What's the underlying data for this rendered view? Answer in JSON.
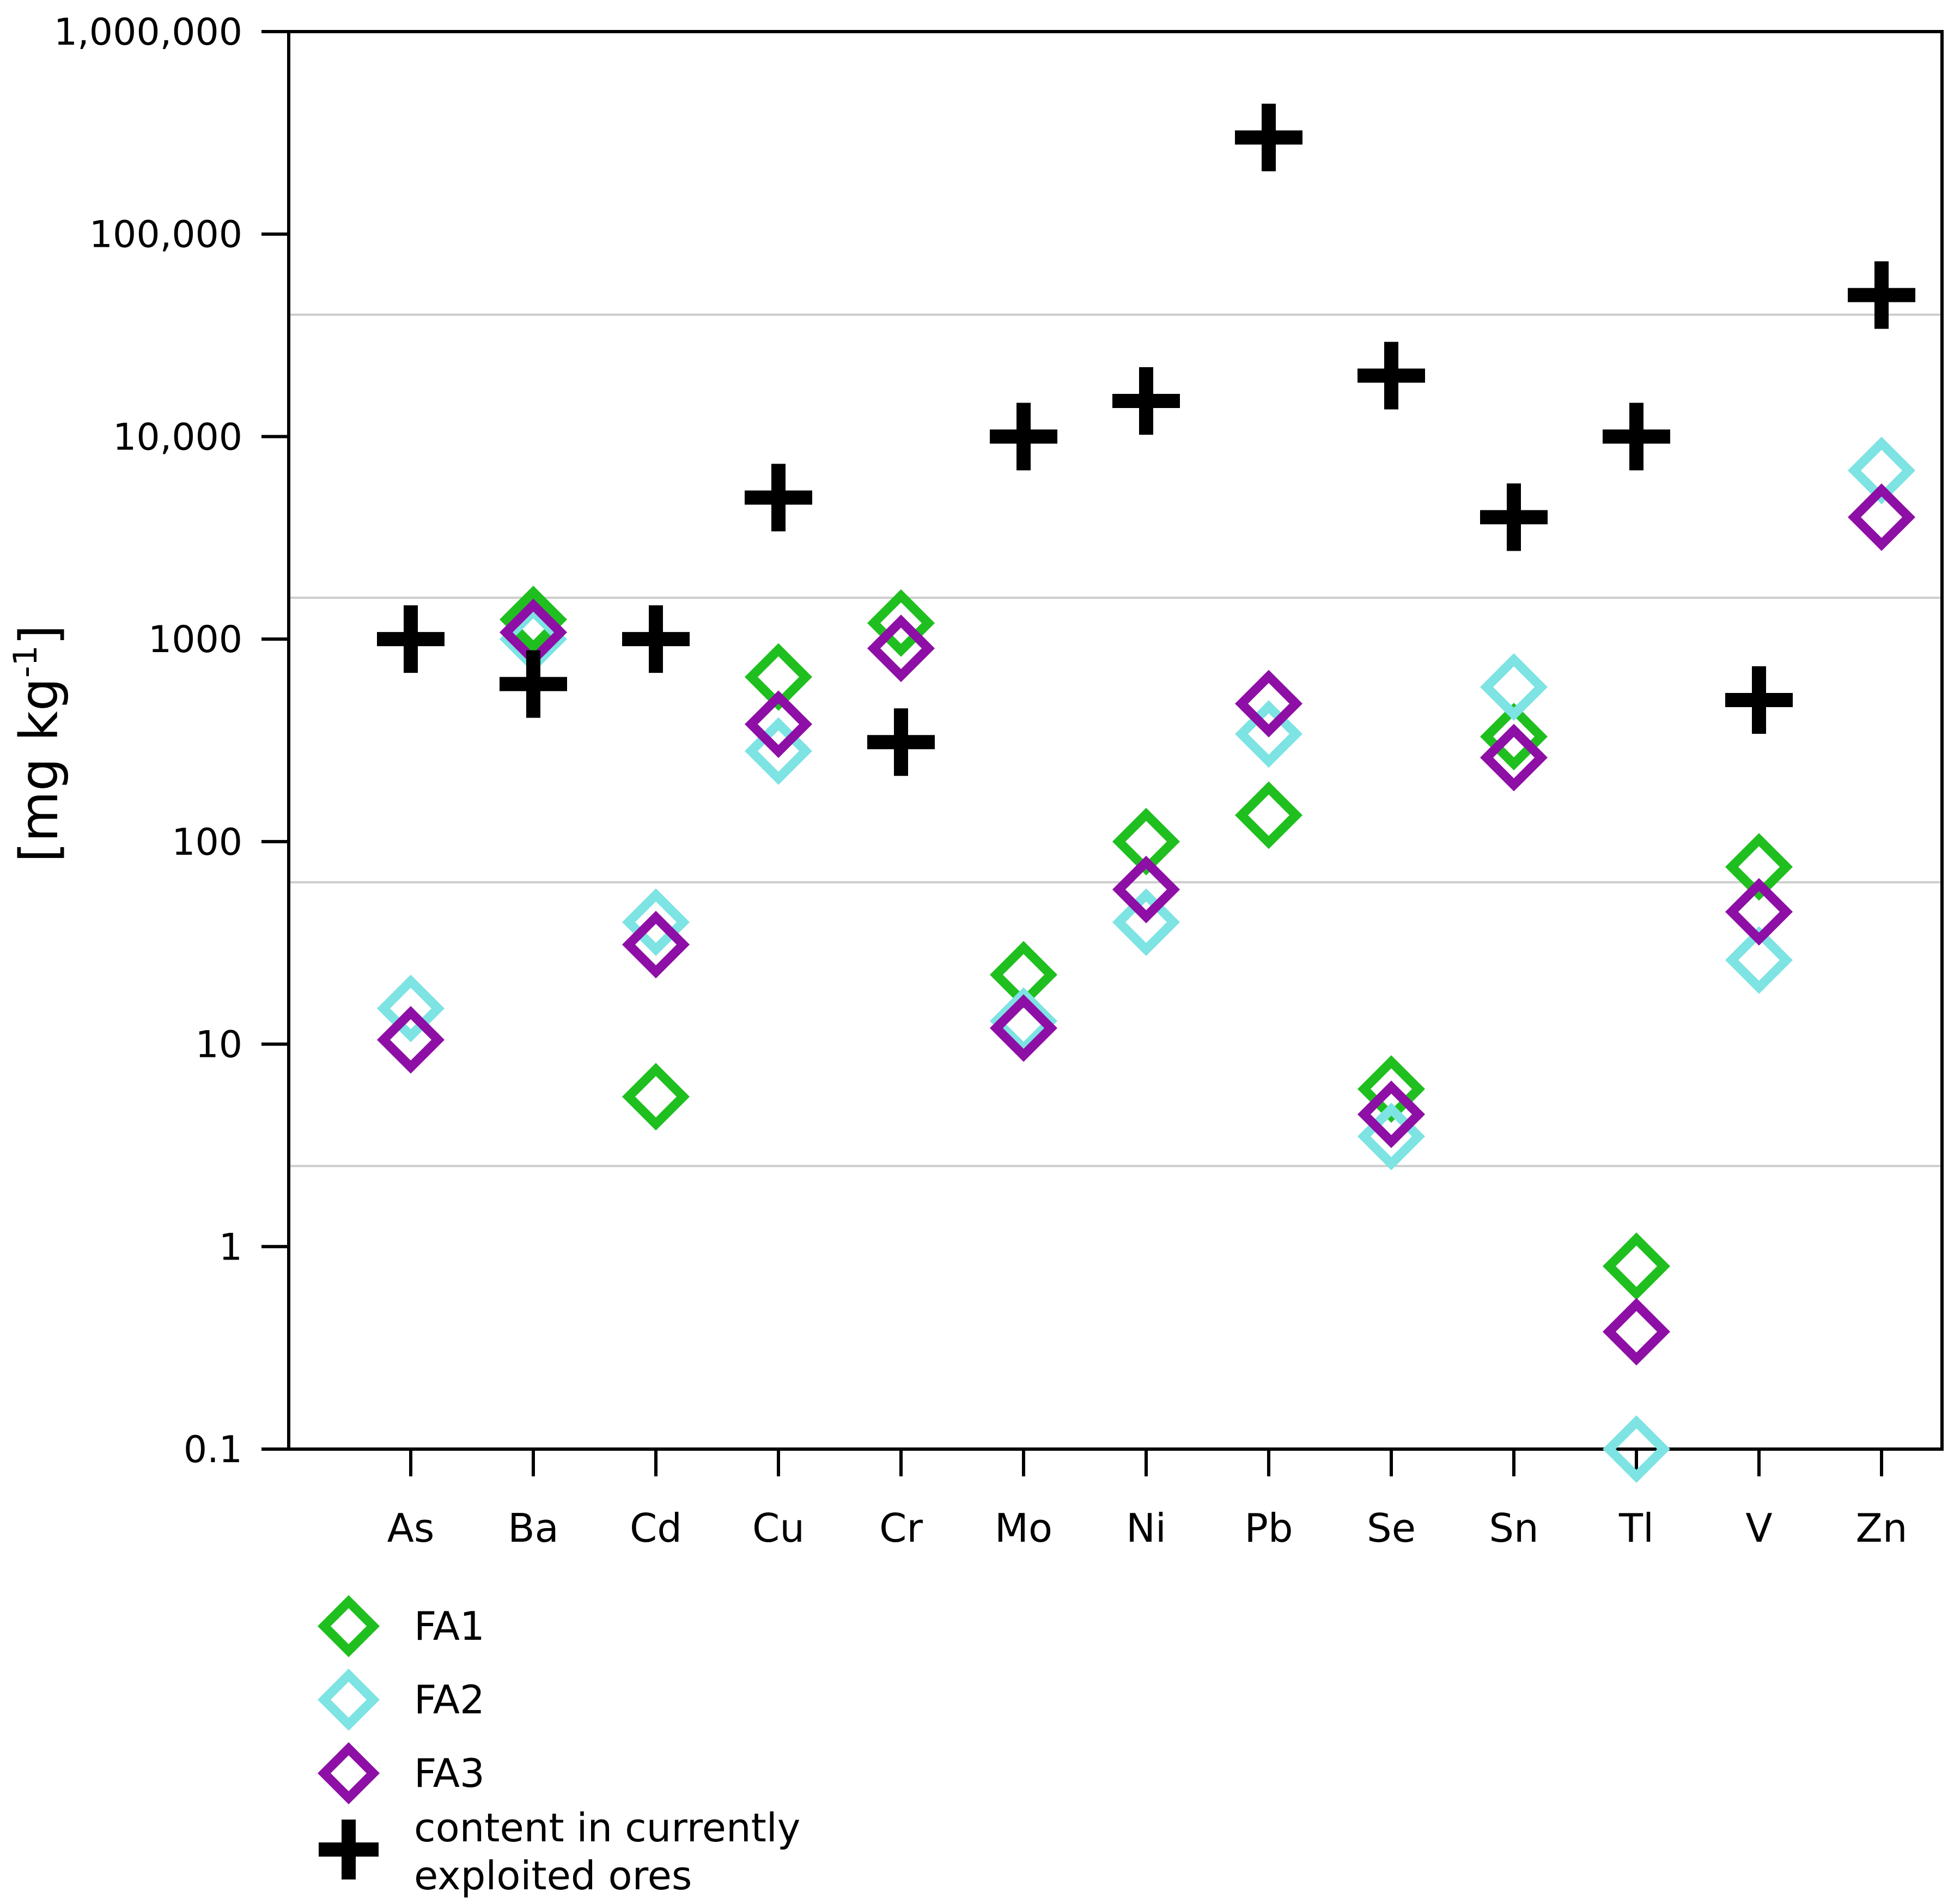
{
  "chart_data": {
    "type": "scatter",
    "y_scale": "log",
    "ylim": [
      0.1,
      1000000
    ],
    "ylabel": "[mg kg",
    "ylabel_sup": "-1",
    "ylabel_close": "]",
    "yticks": [
      {
        "value": 1000000,
        "label": "1,000,000"
      },
      {
        "value": 100000,
        "label": "100,000"
      },
      {
        "value": 10000,
        "label": "10,000"
      },
      {
        "value": 1000,
        "label": "1000"
      },
      {
        "value": 100,
        "label": "100"
      },
      {
        "value": 10,
        "label": "10"
      },
      {
        "value": 1,
        "label": "1"
      },
      {
        "value": 0.1,
        "label": "0.1"
      }
    ],
    "gridlines": [
      40000,
      1600,
      63,
      2.5
    ],
    "categories": [
      "As",
      "Ba",
      "Cd",
      "Cu",
      "Cr",
      "Mo",
      "Ni",
      "Pb",
      "Se",
      "Sn",
      "Tl",
      "V",
      "Zn"
    ],
    "series": [
      {
        "name": "FA1",
        "marker": "diamond",
        "color": "#1fbf1f",
        "values": [
          null,
          1250,
          5.5,
          650,
          1200,
          22,
          100,
          135,
          6,
          330,
          0.8,
          75,
          null
        ]
      },
      {
        "name": "FA2",
        "marker": "diamond",
        "color": "#7de3e3",
        "values": [
          15,
          1000,
          40,
          280,
          null,
          13,
          40,
          340,
          3.5,
          580,
          0.1,
          26,
          6800
        ]
      },
      {
        "name": "FA3",
        "marker": "diamond",
        "color": "#8e0fa5",
        "values": [
          10.5,
          1080,
          31,
          380,
          900,
          12,
          58,
          480,
          4.5,
          260,
          0.38,
          45,
          4000
        ]
      },
      {
        "name": "content in currently exploited ores",
        "marker": "plus",
        "color": "#000000",
        "values": [
          1000,
          600,
          1000,
          5000,
          310,
          10000,
          15000,
          300000,
          20000,
          4000,
          10000,
          500,
          50000
        ]
      }
    ],
    "legend": [
      {
        "lines": [
          "FA1"
        ]
      },
      {
        "lines": [
          "FA2"
        ]
      },
      {
        "lines": [
          "FA3"
        ]
      },
      {
        "lines": [
          "content in currently",
          "exploited ores"
        ]
      }
    ]
  }
}
